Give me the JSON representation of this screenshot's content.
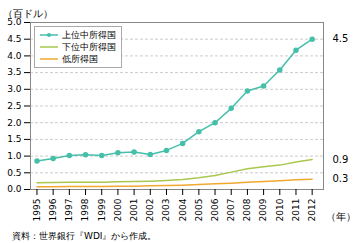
{
  "chart_data": {
    "type": "line",
    "x": [
      1995,
      1996,
      1997,
      1998,
      1999,
      2000,
      2001,
      2002,
      2003,
      2004,
      2005,
      2006,
      2007,
      2008,
      2009,
      2010,
      2011,
      2012
    ],
    "xlim": [
      1994.6,
      2012.7
    ],
    "xticks": [
      1995,
      1996,
      1997,
      1998,
      1999,
      2000,
      2001,
      2002,
      2003,
      2004,
      2005,
      2006,
      2007,
      2008,
      2009,
      2010,
      2011,
      2012
    ],
    "xlabel": "（年）",
    "ylabel": "（百ドル）",
    "ylim": [
      0,
      5.0
    ],
    "yticks": [
      {
        "value": 0.0,
        "label": "0.0"
      },
      0.5,
      {
        "value": 1.0,
        "label": "1.0"
      },
      1.5,
      {
        "value": 2.0,
        "label": "2.0"
      },
      2.5,
      {
        "value": 3.0,
        "label": "3.0"
      },
      3.5,
      {
        "value": 4.0,
        "label": "4.0"
      },
      4.5,
      {
        "value": 5.0,
        "label": "5.0"
      }
    ],
    "y2lim": [
      0,
      5.0
    ],
    "y2ticks": [
      4.5,
      0.9,
      {
        "value": 0.31,
        "label": "0.3"
      }
    ],
    "grid": "y",
    "legend": "upper left",
    "annotations": [
      "資料：世界銀行『WDI』から作成。"
    ],
    "series": [
      {
        "name": "上位中所得国",
        "color": "#45bfaa",
        "marker": "circle",
        "values": [
          0.85,
          0.93,
          1.02,
          1.04,
          1.02,
          1.1,
          1.12,
          1.05,
          1.17,
          1.38,
          1.73,
          2.0,
          2.43,
          2.95,
          3.1,
          3.58,
          4.17,
          4.5
        ]
      },
      {
        "name": "下位中所得国",
        "color": "#a8c84e",
        "values": [
          0.2,
          0.21,
          0.22,
          0.22,
          0.22,
          0.23,
          0.24,
          0.25,
          0.27,
          0.3,
          0.35,
          0.42,
          0.52,
          0.62,
          0.68,
          0.73,
          0.82,
          0.9
        ]
      },
      {
        "name": "低所得国",
        "color": "#f0a830",
        "values": [
          0.08,
          0.08,
          0.09,
          0.09,
          0.09,
          0.1,
          0.1,
          0.11,
          0.12,
          0.13,
          0.15,
          0.17,
          0.19,
          0.22,
          0.24,
          0.26,
          0.29,
          0.31
        ]
      }
    ]
  }
}
